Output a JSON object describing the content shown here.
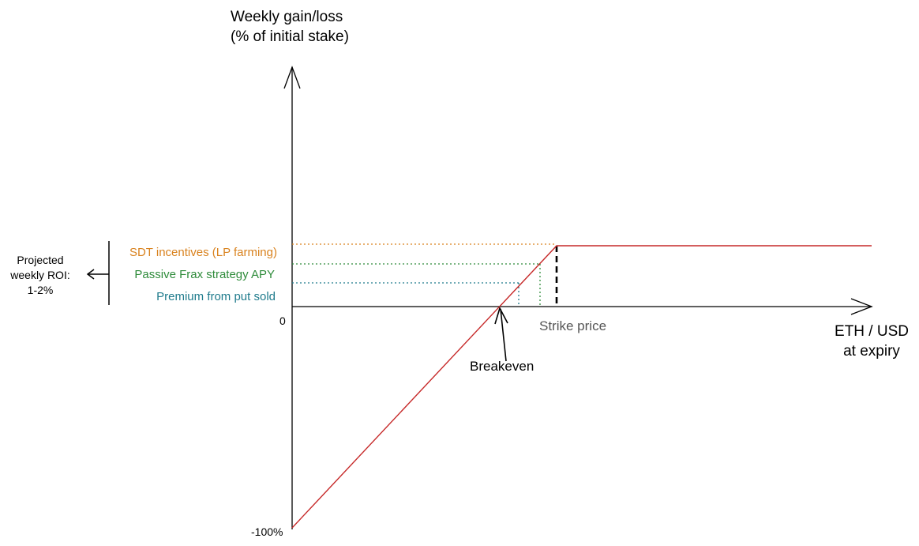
{
  "diagram": {
    "y_axis_title": [
      "Weekly gain/loss",
      "(% of initial stake)"
    ],
    "x_axis_title": [
      "ETH / USD",
      "at expiry"
    ],
    "ticks": {
      "zero": "0",
      "min": "-100%"
    },
    "components": [
      {
        "label": "SDT incentives (LP farming)",
        "color": "#d9821e"
      },
      {
        "label": "Passive Frax strategy APY",
        "color": "#2e8b3a"
      },
      {
        "label": "Premium from put sold",
        "color": "#1f7b8c"
      }
    ],
    "roi_note": [
      "Projected",
      "weekly ROI:",
      "1-2%"
    ],
    "annotations": {
      "strike_price": "Strike price",
      "breakeven": "Breakeven"
    },
    "colors": {
      "payoff_line": "#c62828",
      "axis": "#000000",
      "strike_marker": "#000000",
      "strike_label": "#555555"
    }
  }
}
